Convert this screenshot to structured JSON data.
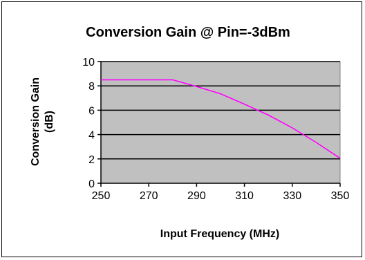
{
  "chart_data": {
    "type": "line",
    "title": "Conversion Gain @ Pin=-3dBm",
    "xlabel": "Input Frequency (MHz)",
    "ylabel_lines": [
      "Conversion Gain",
      "(dB)"
    ],
    "xlim": [
      250,
      350
    ],
    "ylim": [
      0,
      10
    ],
    "x_ticks": [
      250,
      270,
      290,
      310,
      330,
      350
    ],
    "y_ticks": [
      0,
      2,
      4,
      6,
      8,
      10
    ],
    "grid": "horizontal",
    "legend": "none",
    "plot_background": "#c0c0c0",
    "series": [
      {
        "color": "#ff00ff",
        "x": [
          250,
          260,
          270,
          280,
          290,
          300,
          310,
          320,
          330,
          340,
          350
        ],
        "y": [
          8.5,
          8.5,
          8.5,
          8.5,
          7.95,
          7.35,
          6.5,
          5.6,
          4.55,
          3.35,
          2.05
        ]
      }
    ]
  }
}
